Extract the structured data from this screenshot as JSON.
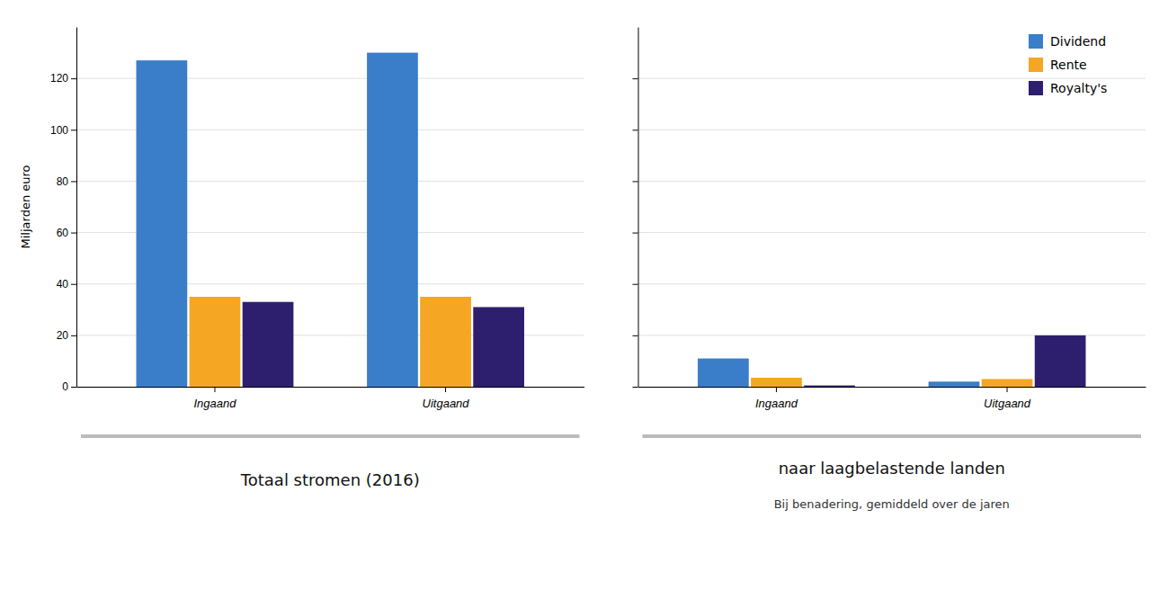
{
  "chart_data": [
    {
      "type": "bar",
      "title": "Totaal stromen (2016)",
      "ylabel": "Miljarden euro",
      "categories": [
        "Ingaand",
        "Uitgaand"
      ],
      "series": [
        {
          "color": "#3a7dc9",
          "values": [
            127,
            130
          ]
        },
        {
          "color": "#f5a623",
          "values": [
            35,
            35
          ]
        },
        {
          "color": "#2e1f6e",
          "values": [
            33,
            31
          ]
        }
      ],
      "ylim": [
        0,
        140
      ],
      "yticks": [
        0,
        20,
        40,
        60,
        80,
        100,
        120
      ],
      "grid": true
    },
    {
      "type": "bar",
      "title": "naar laagbelastende landen",
      "subtitle": "Bij benadering, gemiddeld over de jaren",
      "categories": [
        "Ingaand",
        "Uitgaand"
      ],
      "series": [
        {
          "name": "Dividend",
          "color": "#3a7dc9",
          "values": [
            11,
            2
          ]
        },
        {
          "name": "Rente",
          "color": "#f5a623",
          "values": [
            3.5,
            3
          ]
        },
        {
          "name": "Royalty's",
          "color": "#2e1f6e",
          "values": [
            0.5,
            20
          ]
        }
      ],
      "ylim": [
        0,
        140
      ],
      "yticks": [
        0,
        20,
        40,
        60,
        80,
        100,
        120
      ],
      "grid": true,
      "legend": "upper right",
      "tick_labels": "x"
    }
  ]
}
